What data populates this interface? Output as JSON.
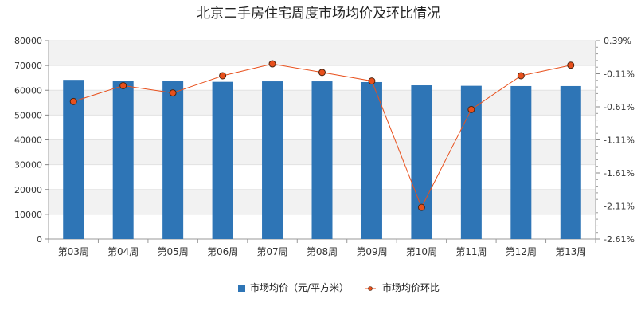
{
  "chart_data": {
    "type": "bar",
    "title": "北京二手房住宅周度市场均价及环比情况",
    "categories": [
      "第03周",
      "第04周",
      "第05周",
      "第06周",
      "第07周",
      "第08周",
      "第09周",
      "第10周",
      "第11周",
      "第12周",
      "第13周"
    ],
    "series": [
      {
        "name": "市场均价（元/平方米）",
        "type": "bar",
        "axis": "left",
        "color": "#2e75b6",
        "values": [
          64200,
          63900,
          63700,
          63400,
          63600,
          63600,
          63300,
          62000,
          61800,
          61700,
          61700
        ]
      },
      {
        "name": "市场均价环比",
        "type": "line",
        "axis": "right",
        "color": "#e8501c",
        "marker_color": "#e8501c",
        "values": [
          -0.53,
          -0.29,
          -0.4,
          -0.14,
          0.04,
          -0.09,
          -0.22,
          -2.13,
          -0.65,
          -0.14,
          0.02
        ]
      }
    ],
    "y_left": {
      "min": 0,
      "max": 80000,
      "ticks": [
        "0",
        "10000",
        "20000",
        "30000",
        "40000",
        "50000",
        "60000",
        "70000",
        "80000"
      ]
    },
    "y_right": {
      "min": -2.61,
      "max": 0.39,
      "ticks": [
        "-2.61%",
        "-2.11%",
        "-1.61%",
        "-1.11%",
        "-0.61%",
        "-0.11%",
        "0.39%"
      ]
    },
    "grid": true,
    "alternate_bands": true,
    "legend_position": "bottom-center"
  }
}
